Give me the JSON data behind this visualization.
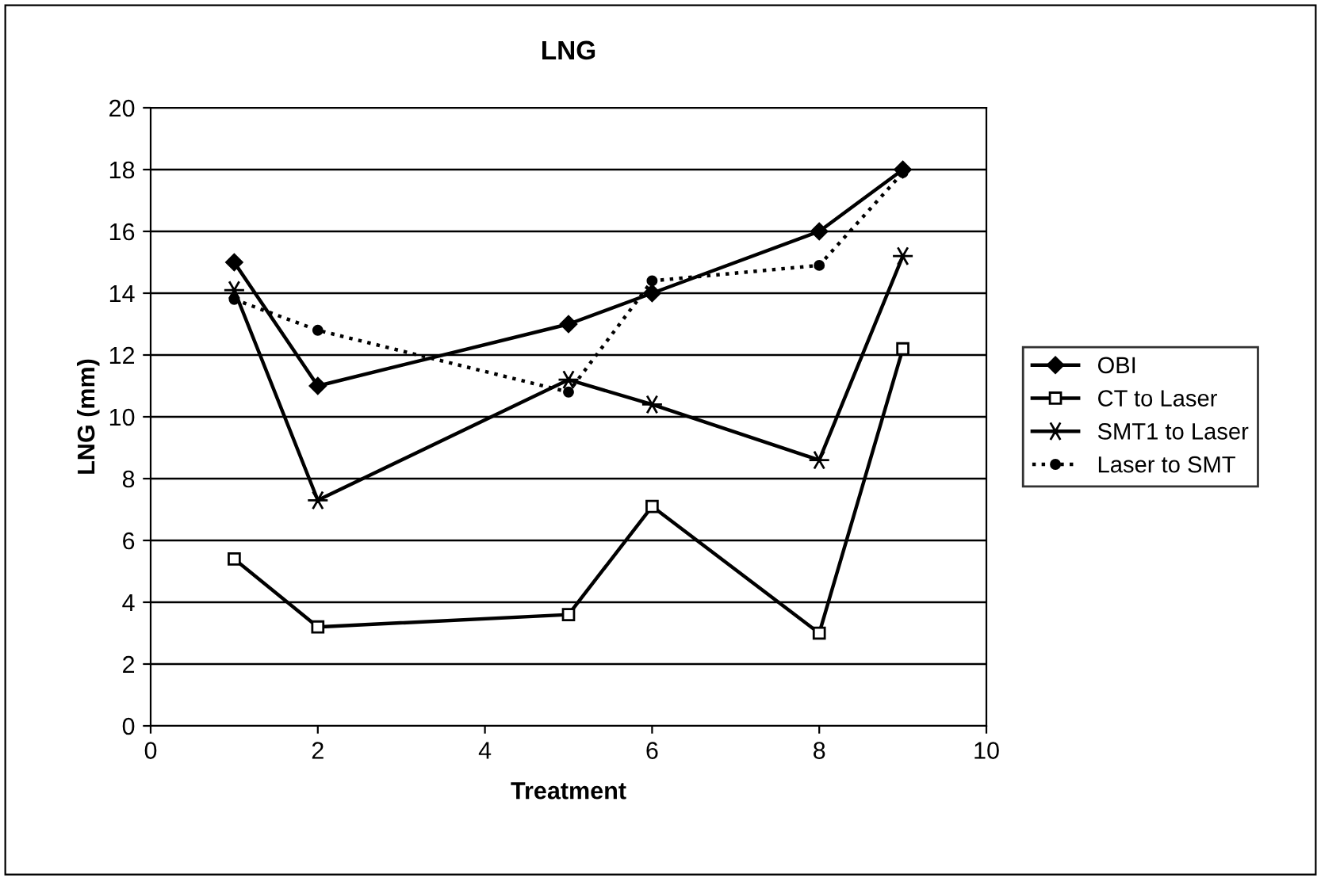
{
  "chart_data": {
    "type": "line",
    "title": "LNG",
    "xlabel": "Treatment",
    "ylabel": "LNG (mm)",
    "x": [
      1,
      2,
      5,
      6,
      8,
      9
    ],
    "series": [
      {
        "name": "OBI",
        "color": "#000000",
        "marker": "diamond",
        "line_style": "solid",
        "values": [
          15,
          11,
          13,
          14,
          16,
          18
        ]
      },
      {
        "name": "CT to Laser",
        "color": "#000000",
        "marker": "square",
        "line_style": "solid",
        "values": [
          5.4,
          3.2,
          3.6,
          7.1,
          3.0,
          12.2
        ]
      },
      {
        "name": "SMT1 to Laser",
        "color": "#000000",
        "marker": "cross",
        "line_style": "solid",
        "values": [
          14.1,
          7.3,
          11.2,
          10.4,
          8.6,
          15.2
        ]
      },
      {
        "name": "Laser to SMT",
        "color": "#000000",
        "marker": "circle",
        "line_style": "dotted",
        "values": [
          13.8,
          12.8,
          10.8,
          14.4,
          14.9,
          17.9
        ]
      }
    ],
    "xlim": [
      0,
      10
    ],
    "xticks": [
      0,
      2,
      4,
      6,
      8,
      10
    ],
    "ylim": [
      0,
      20
    ],
    "yticks": [
      0,
      2,
      4,
      6,
      8,
      10,
      12,
      14,
      16,
      18,
      20
    ],
    "grid": "y",
    "legend": "right"
  }
}
